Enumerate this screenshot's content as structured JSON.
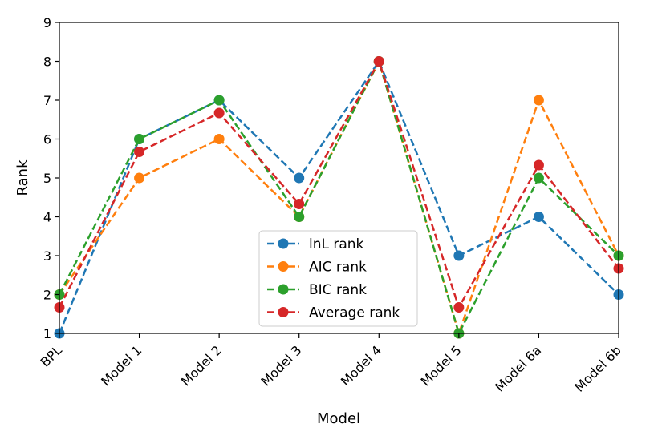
{
  "chart_data": {
    "type": "line",
    "title": "",
    "xlabel": "Model",
    "ylabel": "Rank",
    "categories": [
      "BPL",
      "Model 1",
      "Model 2",
      "Model 3",
      "Model 4",
      "Model 5",
      "Model 6a",
      "Model 6b"
    ],
    "ylim": [
      1,
      9
    ],
    "yticks": [
      1,
      2,
      3,
      4,
      5,
      6,
      7,
      8,
      9
    ],
    "grid": false,
    "legend_position": "lower-center",
    "series": [
      {
        "name": "lnL rank",
        "color": "#1f77b4",
        "values": [
          1,
          6,
          7,
          5,
          8,
          3,
          4,
          2
        ]
      },
      {
        "name": "AIC rank",
        "color": "#ff7f0e",
        "values": [
          2,
          5,
          6,
          4,
          8,
          1,
          7,
          3
        ]
      },
      {
        "name": "BIC rank",
        "color": "#2ca02c",
        "values": [
          2,
          6,
          7,
          4,
          8,
          1,
          5,
          3
        ]
      },
      {
        "name": "Average rank",
        "color": "#d62728",
        "values": [
          1.67,
          5.67,
          6.67,
          4.33,
          8,
          1.67,
          5.33,
          2.67
        ]
      }
    ]
  }
}
